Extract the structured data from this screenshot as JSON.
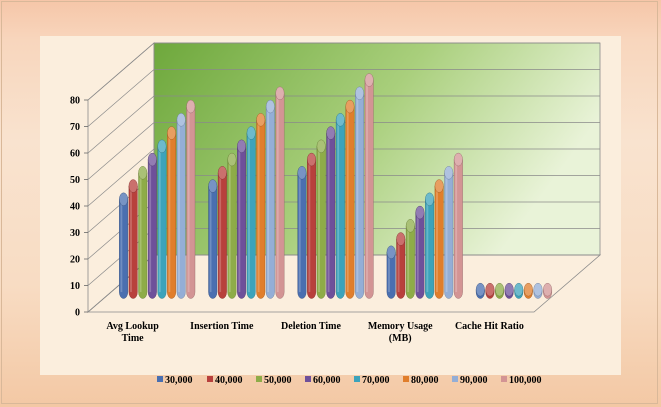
{
  "chart_data": {
    "type": "bar",
    "title": "",
    "xlabel": "",
    "ylabel": "",
    "ylim": [
      0,
      80
    ],
    "yticks": [
      "0",
      "10",
      "20",
      "30",
      "40",
      "50",
      "60",
      "70",
      "80"
    ],
    "categories": [
      "Avg Lookup Time",
      "Insertion Time",
      "Deletion Time",
      "Memory Usage (MB)",
      "Cache Hit Ratio"
    ],
    "category_lines": [
      [
        "Avg Lookup",
        "Time"
      ],
      [
        "Insertion Time"
      ],
      [
        "Deletion Time"
      ],
      [
        "Memory Usage",
        "(MB)"
      ],
      [
        "Cache Hit Ratio"
      ]
    ],
    "series": [
      {
        "name": "30,000",
        "color": "#4a6fb0",
        "values": [
          35,
          40,
          45,
          15,
          0.9
        ]
      },
      {
        "name": "40,000",
        "color": "#b8403c",
        "values": [
          40,
          45,
          50,
          20,
          0.9
        ]
      },
      {
        "name": "50,000",
        "color": "#8eac48",
        "values": [
          45,
          50,
          55,
          25,
          0.9
        ]
      },
      {
        "name": "60,000",
        "color": "#6e509a",
        "values": [
          50,
          55,
          60,
          30,
          0.9
        ]
      },
      {
        "name": "70,000",
        "color": "#3ca3bb",
        "values": [
          55,
          60,
          65,
          35,
          0.9
        ]
      },
      {
        "name": "80,000",
        "color": "#e07e2c",
        "values": [
          60,
          65,
          70,
          40,
          0.9
        ]
      },
      {
        "name": "90,000",
        "color": "#94aed6",
        "values": [
          65,
          70,
          75,
          45,
          0.9
        ]
      },
      {
        "name": "100,000",
        "color": "#d39494",
        "values": [
          70,
          75,
          80,
          50,
          0.9
        ]
      }
    ],
    "grid": true,
    "legend_position": "bottom",
    "wall_color": "#7fb24a"
  }
}
